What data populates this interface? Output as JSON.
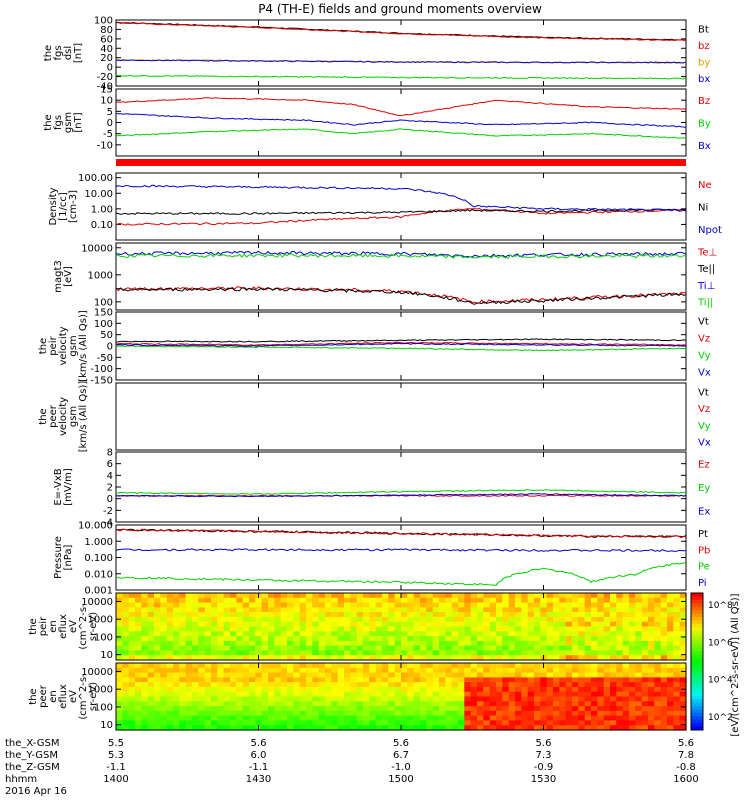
{
  "figure": {
    "title": "P4 (TH-E) fields and ground moments overview",
    "colorbar_label": "[eV/(cm^2-s-sr-eV)] (All Qs)]",
    "colorbar_ticks": [
      "10^8",
      "10^6",
      "10^4",
      "10^2"
    ]
  },
  "ephemeris": {
    "row_labels": [
      "the_X-GSM",
      "the_Y-GSM",
      "the_Z-GSM",
      "hhmm",
      "2016 Apr 16"
    ],
    "columns": [
      {
        "x": "5.5",
        "y": "5.3",
        "z": "-1.1",
        "t": "1400"
      },
      {
        "x": "5.6",
        "y": "6.0",
        "z": "-1.1",
        "t": "1430"
      },
      {
        "x": "5.6",
        "y": "6.7",
        "z": "-1.0",
        "t": "1500"
      },
      {
        "x": "5.6",
        "y": "7.3",
        "z": "-0.9",
        "t": "1530"
      },
      {
        "x": "5.6",
        "y": "7.8",
        "z": "-0.8",
        "t": "1600"
      }
    ]
  },
  "colors": {
    "black": "#000000",
    "red": "#e00000",
    "green": "#00d000",
    "blue": "#0000d0"
  },
  "chart_data": [
    {
      "type": "line",
      "panel": "fgs_dsl",
      "ylabel_lines": [
        "the",
        "fgs",
        "dsl",
        "[nT]"
      ],
      "ylim": [
        -40,
        100
      ],
      "ticks": [
        {
          "v": 100,
          "label": "100"
        },
        {
          "v": 80,
          "label": "80"
        },
        {
          "v": 60,
          "label": "60"
        },
        {
          "v": 40,
          "label": "40"
        },
        {
          "v": 20,
          "label": "20"
        },
        {
          "v": 0,
          "label": "0"
        },
        {
          "v": -20,
          "label": "-20"
        },
        {
          "v": -40,
          "label": "-40"
        }
      ],
      "x": [
        0,
        30,
        60,
        90,
        120
      ],
      "series": [
        {
          "name": "Bt",
          "color": "#000000",
          "values": [
            95,
            85,
            72,
            63,
            58
          ]
        },
        {
          "name": "bz",
          "color": "#e00000",
          "values": [
            94,
            84,
            71,
            62,
            57
          ]
        },
        {
          "name": "by",
          "color": "#e6a000",
          "values": [
            15,
            14,
            11,
            10,
            9
          ]
        },
        {
          "name": "bx",
          "color": "#0000d0",
          "values": [
            15,
            13,
            11,
            10,
            10
          ]
        },
        {
          "name": "",
          "color": "#00d000",
          "values": [
            -18,
            -20,
            -22,
            -23,
            -24
          ]
        }
      ]
    },
    {
      "type": "line",
      "panel": "fgs_gsm",
      "ylabel_lines": [
        "the",
        "fgs",
        "gsm",
        "[nT]"
      ],
      "ylim": [
        -15,
        15
      ],
      "ticks": [
        {
          "v": 15,
          "label": "15"
        },
        {
          "v": 10,
          "label": "10"
        },
        {
          "v": 5,
          "label": "5"
        },
        {
          "v": 0,
          "label": "0"
        },
        {
          "v": -5,
          "label": "-5"
        },
        {
          "v": -10,
          "label": "-10"
        }
      ],
      "x": [
        0,
        20,
        40,
        50,
        60,
        80,
        100,
        120
      ],
      "series": [
        {
          "name": "Bz",
          "color": "#e00000",
          "values": [
            9,
            11,
            10,
            8,
            3,
            10,
            7,
            6
          ]
        },
        {
          "name": "By",
          "color": "#00d000",
          "values": [
            -6,
            -4,
            -3,
            -5,
            -3,
            -6,
            -5,
            -7
          ]
        },
        {
          "name": "Bx",
          "color": "#0000d0",
          "values": [
            4,
            2,
            1,
            -1,
            1,
            -1,
            0,
            -2
          ]
        }
      ]
    },
    {
      "type": "line",
      "panel": "density",
      "ylog": true,
      "ylabel_lines": [
        "Density",
        "[1/cc]",
        "[cm-3]"
      ],
      "ylim": [
        0.01,
        200
      ],
      "ticks": [
        {
          "v": 100,
          "label": "100.00"
        },
        {
          "v": 10,
          "label": "10.00"
        },
        {
          "v": 1,
          "label": "1.00"
        },
        {
          "v": 0.1,
          "label": "0.10"
        }
      ],
      "x": [
        0,
        30,
        60,
        75,
        90,
        120
      ],
      "series": [
        {
          "name": "Ne",
          "color": "#e00000",
          "values": [
            0.1,
            0.12,
            0.3,
            1,
            0.5,
            0.8
          ]
        },
        {
          "name": "Ni",
          "color": "#000000",
          "values": [
            0.5,
            0.5,
            0.6,
            0.8,
            0.7,
            0.9
          ]
        },
        {
          "name": "Npot",
          "color": "#0000d0",
          "values": [
            30,
            25,
            20,
            1.5,
            1,
            0.8
          ]
        }
      ]
    },
    {
      "type": "line",
      "panel": "temperature",
      "ylog": true,
      "ylabel_lines": [
        "magt3",
        "[eV]"
      ],
      "ylim": [
        50,
        15000
      ],
      "ticks": [
        {
          "v": 10000,
          "label": "10000"
        },
        {
          "v": 1000,
          "label": "1000"
        },
        {
          "v": 100,
          "label": "100"
        }
      ],
      "x": [
        0,
        30,
        60,
        75,
        90,
        120
      ],
      "series": [
        {
          "name": "Te⊥",
          "color": "#e00000",
          "values": [
            300,
            320,
            250,
            100,
            120,
            200
          ]
        },
        {
          "name": "Te||",
          "color": "#000000",
          "values": [
            280,
            300,
            230,
            90,
            110,
            190
          ]
        },
        {
          "name": "Ti⊥",
          "color": "#0000d0",
          "values": [
            6000,
            6500,
            6000,
            5000,
            5500,
            6000
          ]
        },
        {
          "name": "Ti||",
          "color": "#00d000",
          "values": [
            5000,
            5200,
            5000,
            4500,
            4800,
            5000
          ]
        }
      ]
    },
    {
      "type": "line",
      "panel": "peir_velocity",
      "ylabel_lines": [
        "the",
        "peir",
        "velocity",
        "gsm",
        "[km/s (All Qs)]"
      ],
      "ylim": [
        -150,
        150
      ],
      "ticks": [
        {
          "v": 150,
          "label": "150"
        },
        {
          "v": 100,
          "label": "100"
        },
        {
          "v": 50,
          "label": "50"
        },
        {
          "v": 0,
          "label": "0"
        },
        {
          "v": -50,
          "label": "-50"
        },
        {
          "v": -100,
          "label": "-100"
        },
        {
          "v": -150,
          "label": "-150"
        }
      ],
      "x": [
        0,
        30,
        60,
        90,
        120
      ],
      "series": [
        {
          "name": "Vt",
          "color": "#000000",
          "values": [
            20,
            20,
            25,
            30,
            25
          ]
        },
        {
          "name": "Vz",
          "color": "#e00000",
          "values": [
            10,
            5,
            15,
            10,
            5
          ]
        },
        {
          "name": "Vy",
          "color": "#00d000",
          "values": [
            0,
            -5,
            -10,
            -20,
            -10
          ]
        },
        {
          "name": "Vx",
          "color": "#0000d0",
          "values": [
            5,
            0,
            10,
            5,
            0
          ]
        }
      ]
    },
    {
      "type": "line",
      "panel": "peer_velocity",
      "ylabel_lines": [
        "the",
        "peer",
        "velocity",
        "gsm",
        "[km/s (All Qs)]"
      ],
      "series": [
        {
          "name": "Vt"
        },
        {
          "name": "Vz"
        },
        {
          "name": "Vy"
        },
        {
          "name": "Vx"
        }
      ],
      "colors": [
        "#000000",
        "#e00000",
        "#00d000",
        "#0000d0"
      ]
    },
    {
      "type": "line",
      "panel": "efield",
      "ylabel_lines": [
        "E=-VxB",
        "[mV/m]"
      ],
      "ylim": [
        -4,
        8
      ],
      "ticks": [
        {
          "v": 8,
          "label": "8"
        },
        {
          "v": 6,
          "label": "6"
        },
        {
          "v": 4,
          "label": "4"
        },
        {
          "v": 2,
          "label": "2"
        },
        {
          "v": 0,
          "label": "0"
        },
        {
          "v": -2,
          "label": "-2"
        },
        {
          "v": -4,
          "label": "-4"
        }
      ],
      "x": [
        0,
        30,
        60,
        90,
        120
      ],
      "series": [
        {
          "name": "Ez",
          "color": "#e00000",
          "values": [
            0.5,
            0.5,
            0.5,
            0.5,
            0.5
          ]
        },
        {
          "name": "Ey",
          "color": "#00d000",
          "values": [
            1,
            0.8,
            1.2,
            1.5,
            1.0
          ]
        },
        {
          "name": "Ex",
          "color": "#0000d0",
          "values": [
            0.5,
            0.4,
            0.6,
            0.8,
            0.5
          ]
        }
      ]
    },
    {
      "type": "line",
      "panel": "pressure",
      "ylog": true,
      "ylabel_lines": [
        "Pressure",
        "[nPa]"
      ],
      "ylim": [
        0.001,
        10
      ],
      "ticks": [
        {
          "v": 10,
          "label": "10.000"
        },
        {
          "v": 1,
          "label": "1.000"
        },
        {
          "v": 0.1,
          "label": "0.100"
        },
        {
          "v": 0.01,
          "label": "0.010"
        },
        {
          "v": 0.001,
          "label": "0.001"
        }
      ],
      "x": [
        0,
        30,
        60,
        80,
        90,
        100,
        110,
        120
      ],
      "series": [
        {
          "name": "Pt",
          "color": "#000000",
          "values": [
            5,
            4,
            3,
            2.5,
            2.2,
            2,
            2,
            2
          ]
        },
        {
          "name": "Pb",
          "color": "#e00000",
          "values": [
            5,
            4,
            3,
            2.5,
            2.2,
            2,
            2,
            1.9
          ]
        },
        {
          "name": "Pe",
          "color": "#00d000",
          "values": [
            0.006,
            0.004,
            0.003,
            0.002,
            0.02,
            0.003,
            0.01,
            0.05
          ]
        },
        {
          "name": "Pi",
          "color": "#0000d0",
          "values": [
            0.3,
            0.3,
            0.3,
            0.28,
            0.28,
            0.27,
            0.27,
            0.27
          ]
        }
      ]
    },
    {
      "type": "heatmap",
      "panel": "peir_eflux",
      "ylabel_lines": [
        "the",
        "peir",
        "en",
        "eflux",
        "eV",
        "(cm^2-s-",
        "sr-eV)"
      ],
      "ylog": true,
      "ylim": [
        5,
        30000
      ],
      "ticks": [
        {
          "v": 10000,
          "label": "10000"
        },
        {
          "v": 1000,
          "label": "1000"
        },
        {
          "v": 100,
          "label": "100"
        },
        {
          "v": 10,
          "label": "10"
        }
      ]
    },
    {
      "type": "heatmap",
      "panel": "peer_eflux",
      "ylabel_lines": [
        "the",
        "peer",
        "en",
        "eflux",
        "eV",
        "(cm^2-s-",
        "sr-eV)"
      ],
      "ylog": true,
      "ylim": [
        5,
        30000
      ],
      "ticks": [
        {
          "v": 10000,
          "label": "10000"
        },
        {
          "v": 1000,
          "label": "1000"
        },
        {
          "v": 100,
          "label": "100"
        },
        {
          "v": 10,
          "label": "10"
        }
      ]
    }
  ]
}
